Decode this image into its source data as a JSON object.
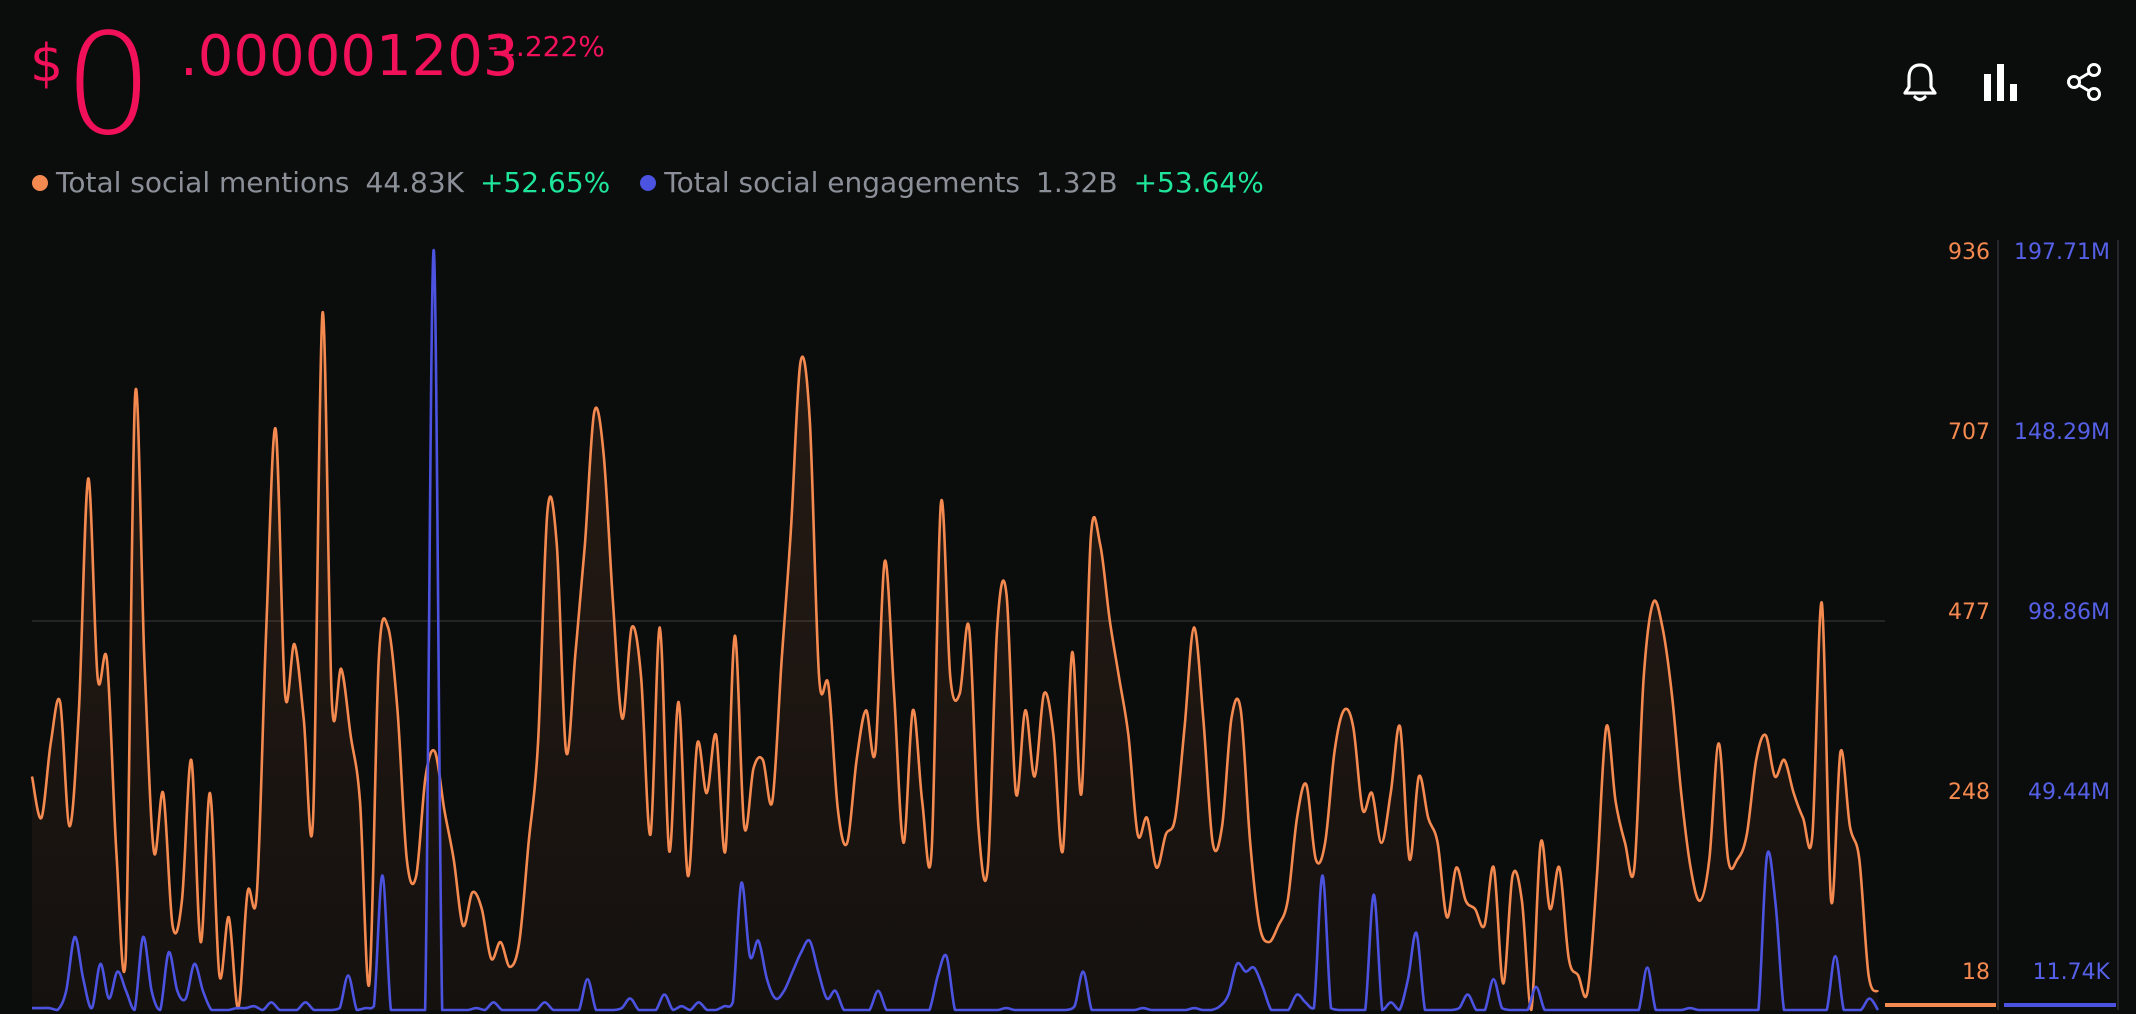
{
  "price": {
    "currency": "$",
    "integer": "0",
    "decimal": ".000001203",
    "change": "-1.222%"
  },
  "toolbar": {
    "alert_icon": "bell-icon",
    "chart_icon": "bar-chart-icon",
    "share_icon": "share-icon"
  },
  "colors": {
    "mentions": "#f58a50",
    "engagements": "#4b53e0",
    "negative": "#f0115a",
    "positive": "#1fe59a"
  },
  "legend": [
    {
      "label": "Total social mentions",
      "value": "44.83K",
      "change": "+52.65%",
      "color": "#f58a50"
    },
    {
      "label": "Total social engagements",
      "value": "1.32B",
      "change": "+53.64%",
      "color": "#4b53e0"
    }
  ],
  "chart_data": {
    "type": "line",
    "grid": "single horizontal line near middle",
    "left_axis": {
      "ticks": [
        "936",
        "707",
        "477",
        "248",
        "18"
      ],
      "ylim": [
        18,
        936
      ]
    },
    "right_axis": {
      "ticks": [
        "197.71M",
        "148.29M",
        "98.86M",
        "49.44M",
        "11.74K"
      ],
      "ylim": [
        0.01174,
        197.71
      ]
    },
    "series": [
      {
        "axis": "left",
        "fill": true,
        "color": "#f58a50",
        "values": [
          300,
          250,
          340,
          390,
          240,
          380,
          660,
          420,
          440,
          210,
          80,
          760,
          440,
          210,
          280,
          120,
          150,
          320,
          100,
          280,
          60,
          130,
          20,
          160,
          160,
          480,
          720,
          400,
          460,
          370,
          250,
          860,
          390,
          430,
          350,
          270,
          50,
          440,
          480,
          380,
          200,
          180,
          300,
          330,
          260,
          200,
          120,
          160,
          140,
          80,
          100,
          70,
          100,
          220,
          340,
          620,
          580,
          330,
          450,
          580,
          740,
          690,
          510,
          370,
          480,
          420,
          230,
          480,
          210,
          390,
          180,
          340,
          280,
          350,
          210,
          470,
          240,
          310,
          320,
          270,
          440,
          600,
          800,
          730,
          420,
          410,
          260,
          220,
          320,
          380,
          330,
          560,
          400,
          220,
          380,
          270,
          210,
          630,
          420,
          400,
          480,
          240,
          190,
          480,
          520,
          280,
          380,
          300,
          400,
          350,
          210,
          450,
          280,
          590,
          580,
          490,
          420,
          350,
          230,
          250,
          190,
          230,
          250,
          360,
          480,
          370,
          220,
          240,
          370,
          380,
          220,
          120,
          100,
          120,
          150,
          250,
          290,
          200,
          220,
          330,
          380,
          360,
          260,
          280,
          220,
          280,
          360,
          200,
          300,
          250,
          220,
          130,
          190,
          150,
          140,
          120,
          190,
          50,
          180,
          150,
          10,
          220,
          140,
          190,
          80,
          60,
          40,
          180,
          360,
          270,
          220,
          190,
          420,
          510,
          480,
          400,
          280,
          190,
          150,
          200,
          340,
          200,
          200,
          230,
          320,
          350,
          300,
          320,
          280,
          250,
          230,
          510,
          150,
          330,
          240,
          200,
          60,
          40
        ]
      },
      {
        "axis": "right",
        "fill": false,
        "color": "#4b53e0",
        "values": [
          0.5,
          0.5,
          0.5,
          0,
          5,
          19,
          8,
          0.5,
          12,
          3,
          10,
          5,
          0,
          19,
          5,
          0,
          15,
          5,
          3,
          12,
          5,
          0,
          0,
          0,
          0.5,
          0.5,
          1,
          0,
          2,
          0,
          0,
          0,
          2,
          0,
          0,
          0,
          0.5,
          9,
          0,
          0.5,
          1,
          35,
          0,
          0,
          0,
          0,
          0,
          197.7,
          0,
          0,
          0,
          0,
          0.5,
          0,
          2,
          0,
          0,
          0,
          0,
          0,
          2,
          0,
          0,
          0,
          0,
          8,
          0,
          0,
          0,
          0.5,
          3,
          0,
          0,
          0,
          4,
          0,
          1,
          0,
          2,
          0,
          0,
          1,
          2,
          33,
          14,
          18,
          8,
          3,
          5,
          10,
          15,
          18,
          10,
          3,
          5,
          0,
          0,
          0,
          0,
          5,
          0,
          0,
          0,
          0,
          0,
          0,
          9,
          14,
          0,
          0,
          0,
          0,
          0,
          0,
          0.5,
          0,
          0,
          0,
          0,
          0,
          0,
          0,
          1,
          10,
          0,
          0,
          0,
          0,
          0,
          0,
          0.5,
          0,
          0,
          0,
          0,
          0,
          0.5,
          0,
          0,
          1,
          4,
          12,
          10,
          11,
          6,
          0,
          0,
          0,
          4,
          2,
          0.5,
          35,
          0.5,
          0,
          0,
          0,
          0,
          30,
          0,
          2,
          0,
          8,
          20,
          0,
          0,
          0,
          0,
          0.5,
          4,
          0,
          0,
          8,
          0.5,
          0,
          0,
          0,
          6,
          0,
          0,
          0,
          0,
          0,
          0,
          0,
          0,
          0,
          0,
          0,
          0,
          11,
          0,
          0,
          0,
          0,
          0.5,
          0,
          0,
          0,
          0,
          0,
          0,
          0,
          0,
          40,
          28,
          0,
          0,
          0,
          0,
          0,
          0,
          14,
          0,
          0,
          0,
          3,
          0
        ]
      }
    ]
  }
}
